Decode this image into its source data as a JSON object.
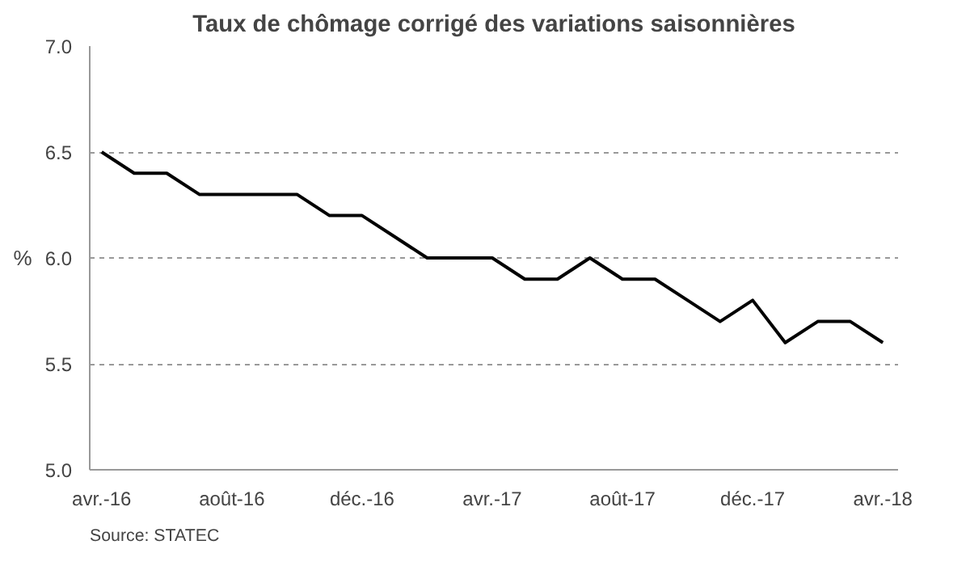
{
  "chart_data": {
    "type": "line",
    "title": "Taux de chômage corrigé des variations saisonnières",
    "ylabel": "%",
    "x": [
      "2016-04",
      "2016-05",
      "2016-06",
      "2016-07",
      "2016-08",
      "2016-09",
      "2016-10",
      "2016-11",
      "2016-12",
      "2017-01",
      "2017-02",
      "2017-03",
      "2017-04",
      "2017-05",
      "2017-06",
      "2017-07",
      "2017-08",
      "2017-09",
      "2017-10",
      "2017-11",
      "2017-12",
      "2018-01",
      "2018-02",
      "2018-03",
      "2018-04"
    ],
    "series": [
      {
        "color": "#000000",
        "values": [
          6.5,
          6.4,
          6.4,
          6.3,
          6.3,
          6.3,
          6.3,
          6.2,
          6.2,
          6.1,
          6.0,
          6.0,
          6.0,
          5.9,
          5.9,
          6.0,
          5.9,
          5.9,
          5.8,
          5.7,
          5.8,
          5.6,
          5.7,
          5.7,
          5.6
        ]
      }
    ],
    "xlim": [
      "2016-03-20",
      "2018-04-15"
    ],
    "xticks": [
      {
        "value": "2016-04",
        "label": "avr.-16"
      },
      {
        "value": "2016-08",
        "label": "août-16"
      },
      {
        "value": "2016-12",
        "label": "déc.-16"
      },
      {
        "value": "2017-04",
        "label": "avr.-17"
      },
      {
        "value": "2017-08",
        "label": "août-17"
      },
      {
        "value": "2017-12",
        "label": "déc.-17"
      },
      {
        "value": "2018-04",
        "label": "avr.-18"
      }
    ],
    "ylim": [
      5.0,
      7.0
    ],
    "yticks": [
      {
        "value": 5.0,
        "label": "5.0"
      },
      {
        "value": 5.5,
        "label": "5.5"
      },
      {
        "value": 6.0,
        "label": "6.0"
      },
      {
        "value": 6.5,
        "label": "6.5"
      },
      {
        "value": 7.0,
        "label": "7.0"
      }
    ],
    "grid": "y",
    "marker": "none",
    "line_style": "solid",
    "annotations": [
      "Source: STATEC"
    ]
  }
}
